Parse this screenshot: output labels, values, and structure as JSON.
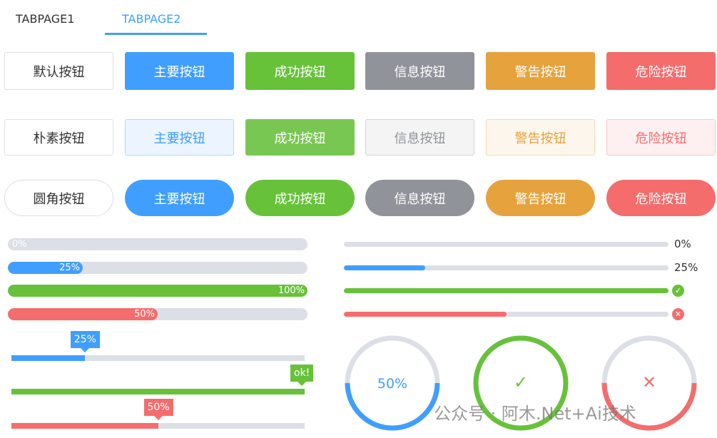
{
  "tabs": [
    {
      "label": "TABPAGE1",
      "active": false
    },
    {
      "label": "TABPAGE2",
      "active": true
    }
  ],
  "colors": {
    "primary": "#409eff",
    "success": "#67c23a",
    "info": "#909399",
    "warning": "#e6a23c",
    "danger": "#f56c6c",
    "track": "#dcdfe6"
  },
  "buttons": {
    "default": [
      "默认按钮",
      "主要按钮",
      "成功按钮",
      "信息按钮",
      "警告按钮",
      "危险按钮"
    ],
    "plain": [
      "朴素按钮",
      "主要按钮",
      "成功按钮",
      "信息按钮",
      "警告按钮",
      "危险按钮"
    ],
    "round": [
      "圆角按钮",
      "主要按钮",
      "成功按钮",
      "信息按钮",
      "警告按钮",
      "危险按钮"
    ]
  },
  "inner_progress": [
    {
      "percent": 0,
      "text": "0%",
      "status": "default"
    },
    {
      "percent": 25,
      "text": "25%",
      "status": "primary"
    },
    {
      "percent": 100,
      "text": "100%",
      "status": "success"
    },
    {
      "percent": 50,
      "text": "50%",
      "status": "danger"
    }
  ],
  "tooltip_progress": [
    {
      "percent": 25,
      "text": "25%",
      "status": "primary"
    },
    {
      "percent": 100,
      "text": "ok!",
      "status": "success"
    },
    {
      "percent": 50,
      "text": "50%",
      "status": "danger"
    }
  ],
  "line_progress": [
    {
      "percent": 0,
      "text": "0%",
      "icon": null
    },
    {
      "percent": 25,
      "text": "25%",
      "icon": null
    },
    {
      "percent": 100,
      "text": "",
      "icon": "check-circle-icon"
    },
    {
      "percent": 50,
      "text": "",
      "icon": "close-circle-icon"
    }
  ],
  "circle_progress": [
    {
      "percent": 50,
      "text": "50%",
      "status": "primary"
    },
    {
      "percent": 100,
      "text": "✓",
      "status": "success"
    },
    {
      "percent": 50,
      "text": "✕",
      "status": "danger"
    }
  ],
  "watermark": "公众号 · 阿木.Net+Ai技术"
}
